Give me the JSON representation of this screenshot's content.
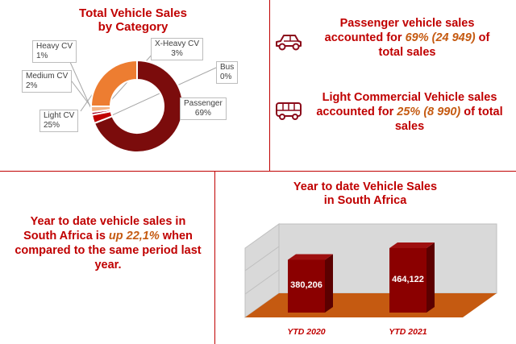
{
  "donut_panel": {
    "title_line1": "Total Vehicle Sales",
    "title_line2": "by Category"
  },
  "passenger_stat": {
    "line1": "Passenger vehicle sales",
    "line2_pre": "accounted for ",
    "line2_highlight": "69% (24 949)",
    "line2_post": " of",
    "line3": "total sales"
  },
  "lcv_stat": {
    "line1": "Light Commercial Vehicle sales",
    "line2_pre": "accounted for ",
    "line2_highlight": "25% (8 990)",
    "line2_post": " of total",
    "line3": "sales"
  },
  "ytd_stat": {
    "line1": "Year to date vehicle sales in",
    "line2_pre": "South Africa is ",
    "line2_highlight": "up 22,1%",
    "line2_post": " when",
    "line3": "compared to the same period last",
    "line4": "year."
  },
  "bar_panel": {
    "title_line1": "Year to date Vehicle Sales",
    "title_line2": "in South Africa"
  },
  "icons": {
    "car": "car-icon",
    "bus": "bus-icon"
  },
  "colors": {
    "accent_red": "#c00000",
    "highlight_orange": "#c55a11",
    "passenger": "#7b0c0c",
    "light_cv": "#ed7d31",
    "floor": "#c55a11"
  },
  "chart_data": [
    {
      "type": "pie",
      "title": "Total Vehicle Sales by Category",
      "categories": [
        "Passenger",
        "Light CV",
        "Medium CV",
        "Heavy CV",
        "X-Heavy CV",
        "Bus"
      ],
      "values": [
        69,
        25,
        2,
        1,
        3,
        0
      ],
      "labels": [
        "69%",
        "25%",
        "2%",
        "1%",
        "3%",
        "0%"
      ],
      "colors": [
        "#7b0c0c",
        "#ed7d31",
        "#f4b183",
        "#a50021",
        "#c00000",
        "#7f7f7f"
      ]
    },
    {
      "type": "bar",
      "title": "Year to date Vehicle Sales in South Africa",
      "categories": [
        "YTD 2020",
        "YTD 2021"
      ],
      "values": [
        380206,
        464122
      ],
      "value_labels": [
        "380,206",
        "464,122"
      ],
      "xlabel": "",
      "ylabel": ""
    }
  ]
}
